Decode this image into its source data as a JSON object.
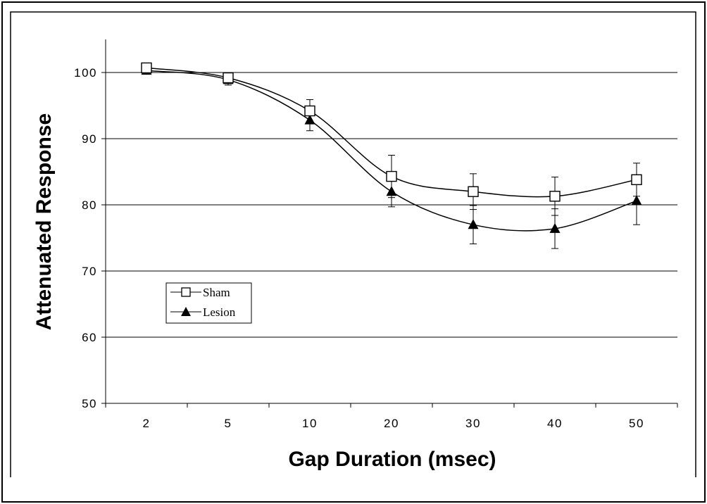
{
  "chart_data": {
    "type": "line",
    "title": "",
    "xlabel": "Gap Duration (msec)",
    "ylabel": "Attenuated Response",
    "categories": [
      "2",
      "5",
      "10",
      "20",
      "30",
      "40",
      "50"
    ],
    "ylim": [
      50,
      105
    ],
    "yticks": [
      50,
      60,
      70,
      80,
      90,
      100
    ],
    "grid": "horizontal",
    "legend_position": "lower-left",
    "series": [
      {
        "name": "Sham",
        "marker": "open-square",
        "values": [
          100.7,
          99.2,
          94.2,
          84.3,
          82.0,
          81.3,
          83.8
        ],
        "error": [
          0.4,
          0.8,
          1.7,
          3.2,
          2.7,
          2.9,
          2.5
        ]
      },
      {
        "name": "Lesion",
        "marker": "filled-triangle",
        "values": [
          100.3,
          98.9,
          92.8,
          82.0,
          77.0,
          76.4,
          80.6
        ],
        "error": [
          0.4,
          0.8,
          1.6,
          2.3,
          2.9,
          3.0,
          3.6
        ]
      }
    ]
  }
}
